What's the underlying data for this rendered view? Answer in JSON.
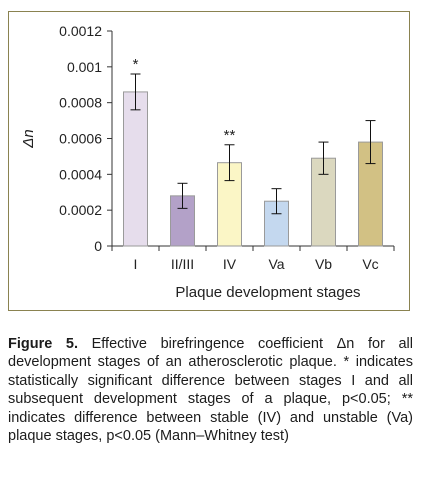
{
  "chart_data": {
    "type": "bar",
    "categories": [
      "I",
      "II/III",
      "IV",
      "Va",
      "Vb",
      "Vc"
    ],
    "values": [
      0.00086,
      0.00028,
      0.000465,
      0.00025,
      0.00049,
      0.00058
    ],
    "errors": [
      0.0001,
      7e-05,
      0.0001,
      7e-05,
      9e-05,
      0.00012
    ],
    "annotations": [
      "*",
      "",
      "**",
      "",
      "",
      ""
    ],
    "bar_colors": [
      "#e6ddec",
      "#b3a1c8",
      "#fbf6c6",
      "#c4d8ef",
      "#dbd8bf",
      "#d2c184"
    ],
    "ylabel": "Δn",
    "xlabel": "Plaque development stages",
    "ylim": [
      0,
      0.0012
    ],
    "yticks": [
      "0",
      "0.0002",
      "0.0004",
      "0.0006",
      "0.0008",
      "0.001",
      "0.0012"
    ],
    "grid": false,
    "legend": "none"
  },
  "caption": {
    "label": "Figure 5.",
    "text": " Effective birefringence coefficient Δn for all development stages of an atherosclerotic plaque. * indicates statistically significant difference between stages I and all subsequent development stages of a plaque, p<0.05; ** indicates difference between stable (IV) and unstable (Va) plaque stages, p<0.05 (Mann–Whitney test)"
  },
  "colors": {
    "frame_border": "#8a8250",
    "axis": "#333333",
    "bar_outline": "#9a9a9a"
  }
}
